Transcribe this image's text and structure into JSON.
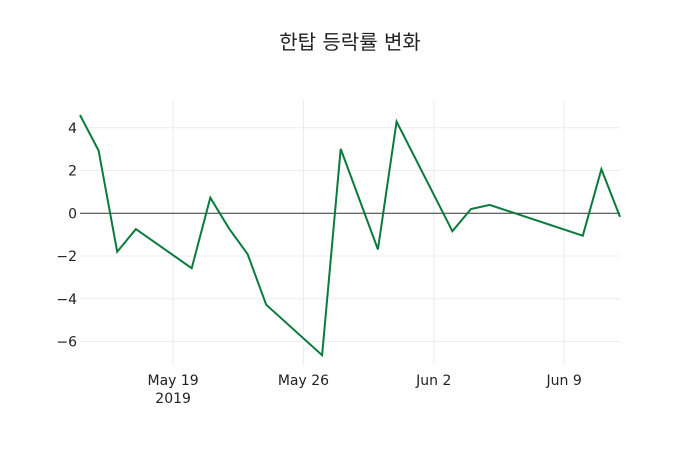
{
  "chart_data": {
    "type": "line",
    "title": "한탑 등락률 변화",
    "xlabel": "",
    "ylabel": "",
    "ylim": [
      -7.1,
      5.3
    ],
    "grid": true,
    "legend": null,
    "x_ticks": [
      {
        "label": "May 19",
        "sublabel": "2019",
        "date": "2019-05-19"
      },
      {
        "label": "May 26",
        "sublabel": "",
        "date": "2019-05-26"
      },
      {
        "label": "Jun 2",
        "sublabel": "",
        "date": "2019-06-02"
      },
      {
        "label": "Jun 9",
        "sublabel": "",
        "date": "2019-06-09"
      }
    ],
    "y_ticks": [
      4,
      2,
      0,
      -2,
      -4,
      -6
    ],
    "y_tick_labels": [
      "4",
      "2",
      "0",
      "−2",
      "−4",
      "−6"
    ],
    "x_range": [
      "2019-05-14",
      "2019-06-12"
    ],
    "series": [
      {
        "name": "등락률",
        "color": "#0b7a3e",
        "x": [
          "2019-05-14",
          "2019-05-15",
          "2019-05-16",
          "2019-05-17",
          "2019-05-20",
          "2019-05-21",
          "2019-05-22",
          "2019-05-23",
          "2019-05-24",
          "2019-05-27",
          "2019-05-28",
          "2019-05-30",
          "2019-05-31",
          "2019-06-03",
          "2019-06-04",
          "2019-06-05",
          "2019-06-10",
          "2019-06-11",
          "2019-06-12"
        ],
        "values": [
          4.6,
          2.93,
          -1.8,
          -0.74,
          -2.57,
          0.73,
          -0.71,
          -1.91,
          -4.28,
          -6.64,
          3.01,
          -1.69,
          4.29,
          -0.84,
          0.2,
          0.39,
          -1.05,
          2.06,
          -0.17
        ]
      }
    ]
  }
}
